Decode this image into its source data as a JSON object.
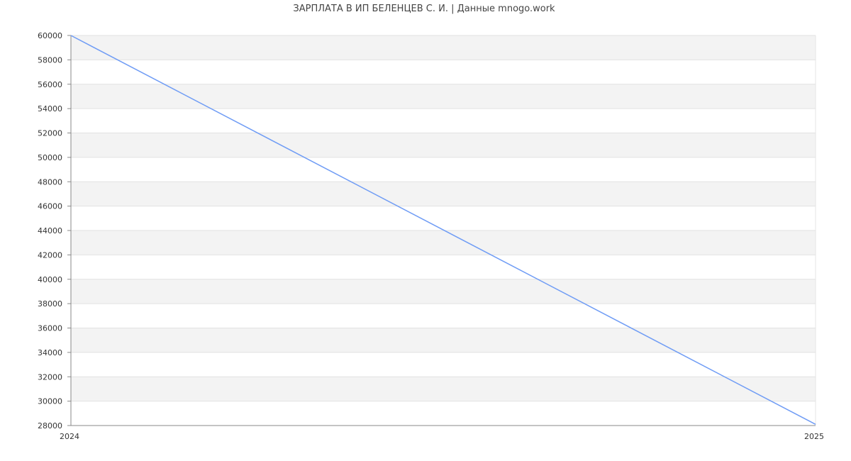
{
  "chart_data": {
    "type": "line",
    "title": "ЗАРПЛАТА В ИП БЕЛЕНЦЕВ С. И. | Данные mnogo.work",
    "xlabel": "",
    "ylabel": "",
    "x": [
      "2024",
      "2025"
    ],
    "series": [
      {
        "values": [
          60000,
          28100
        ],
        "color": "#6f9cf5"
      }
    ],
    "ylim": [
      28000,
      60000
    ],
    "yticks": [
      28000,
      30000,
      32000,
      34000,
      36000,
      38000,
      40000,
      42000,
      44000,
      46000,
      48000,
      50000,
      52000,
      54000,
      56000,
      58000,
      60000
    ],
    "grid": true,
    "band_colors": [
      "#f3f3f3",
      "#ffffff"
    ]
  }
}
